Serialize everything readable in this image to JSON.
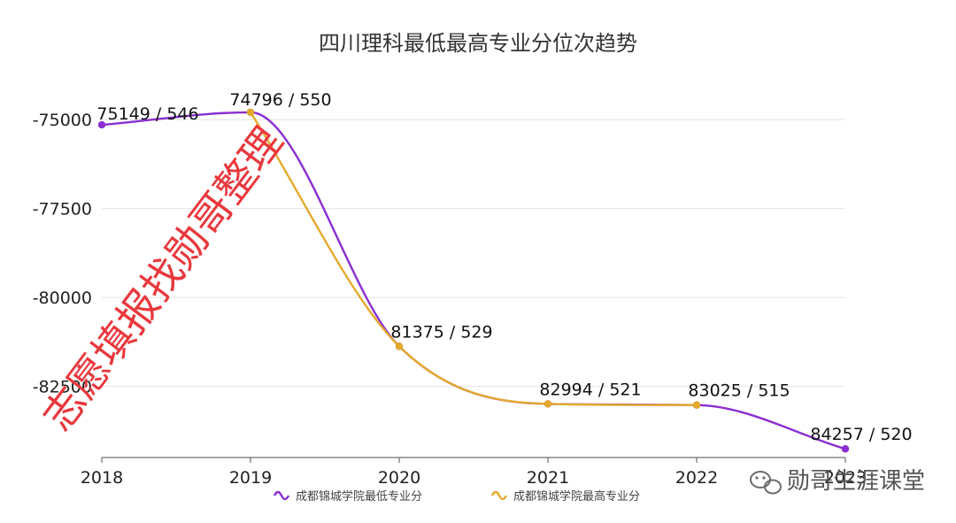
{
  "chart_data": {
    "type": "line",
    "title": "四川理科最低最高专业分位次趋势",
    "categories": [
      "2018",
      "2019",
      "2020",
      "2021",
      "2022",
      "2023"
    ],
    "yticks": [
      -75000,
      -77500,
      -80000,
      -82500
    ],
    "ylim": [
      -84500,
      -74500
    ],
    "smooth": true,
    "grid": true,
    "legend_position": "bottom",
    "series": [
      {
        "name": "成都锦城学院最低专业分",
        "color": "#8a2fd1",
        "values": [
          -75149,
          -74796,
          -81375,
          -82994,
          -83025,
          -84257
        ],
        "labels": [
          "75149 / 546",
          "",
          "",
          "",
          "83025 / 515",
          "84257 / 520"
        ]
      },
      {
        "name": "成都锦城学院最高专业分",
        "color": "#e3aa2b",
        "values": [
          null,
          -74796,
          -81375,
          -82994,
          -83025,
          null
        ],
        "labels": [
          "",
          "74796 / 550",
          "81375 / 529",
          "82994 / 521",
          "",
          ""
        ]
      }
    ]
  },
  "watermark": {
    "text": "志愿填报找勋哥整理",
    "color": "#e8383d"
  },
  "account": {
    "name": "勋哥生涯课堂",
    "icon": "wechat-icon"
  }
}
